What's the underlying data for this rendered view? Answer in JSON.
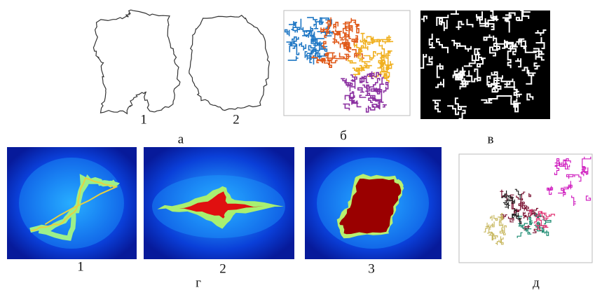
{
  "panels": [
    {
      "label": "а",
      "items": [
        {
          "label": "1"
        },
        {
          "label": "2"
        }
      ]
    },
    {
      "label": "б"
    },
    {
      "label": "в"
    },
    {
      "label": "г",
      "items": [
        {
          "label": "1"
        },
        {
          "label": "2"
        },
        {
          "label": "3"
        }
      ]
    },
    {
      "label": "д"
    }
  ]
}
